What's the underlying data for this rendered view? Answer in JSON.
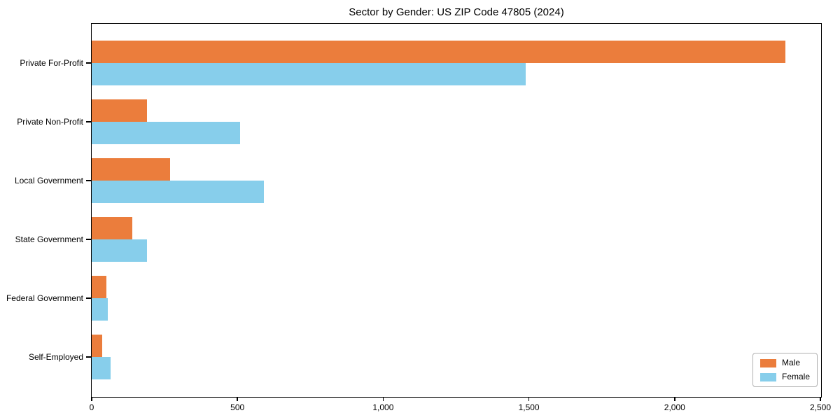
{
  "chart_data": {
    "type": "bar",
    "orientation": "horizontal",
    "title": "Sector by Gender: US ZIP Code 47805 (2024)",
    "categories": [
      "Private For-Profit",
      "Private Non-Profit",
      "Local Government",
      "State Government",
      "Federal Government",
      "Self-Employed"
    ],
    "series": [
      {
        "name": "Male",
        "color": "#eb7d3c",
        "values": [
          2380,
          190,
          270,
          140,
          50,
          35
        ]
      },
      {
        "name": "Female",
        "color": "#87ceeb",
        "values": [
          1490,
          510,
          590,
          190,
          55,
          65
        ]
      }
    ],
    "xlim": [
      0,
      2500
    ],
    "x_ticks": [
      0,
      500,
      1000,
      1500,
      2000,
      2500
    ],
    "x_tick_labels": [
      "0",
      "500",
      "1,000",
      "1,500",
      "2,000",
      "2,500"
    ],
    "xlabel": "",
    "ylabel": "",
    "legend_position": "lower right",
    "grid": false,
    "colors": {
      "spine": "#000000",
      "text": "#000000",
      "background": "#ffffff",
      "legend_border": "#b0b0b0"
    }
  }
}
